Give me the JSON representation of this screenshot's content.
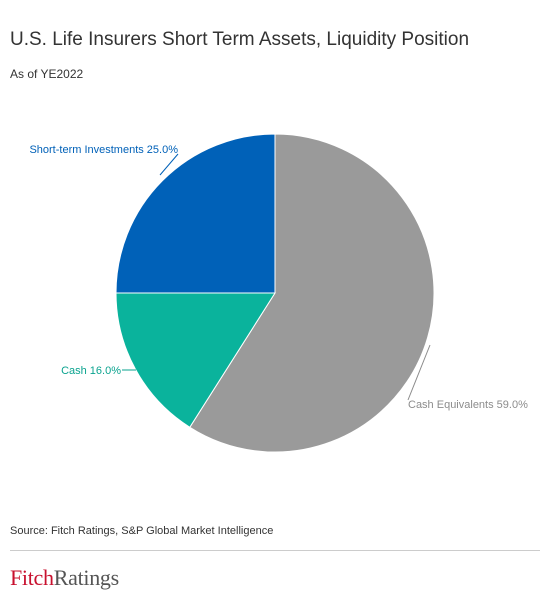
{
  "header": {
    "title": "U.S. Life Insurers Short Term Assets, Liquidity Position",
    "subtitle": "As of YE2022"
  },
  "chart_data": {
    "type": "pie",
    "title": "U.S. Life Insurers Short Term Assets, Liquidity Position",
    "subtitle": "As of YE2022",
    "unit": "%",
    "start_angle_deg": 0,
    "direction": "clockwise",
    "slices": [
      {
        "name": "Cash Equivalents",
        "value": 59.0,
        "label": "Cash Equivalents 59.0%",
        "color": "#9a9a9a",
        "label_color": "#8c8c8c"
      },
      {
        "name": "Cash",
        "value": 16.0,
        "label": "Cash 16.0%",
        "color": "#0ab39c",
        "label_color": "#0aa38f"
      },
      {
        "name": "Short-term Investments",
        "value": 25.0,
        "label": "Short-term Investments 25.0%",
        "color": "#0061b8",
        "label_color": "#0061b8"
      }
    ]
  },
  "footer": {
    "source": "Source: Fitch Ratings,  S&P Global Market Intelligence",
    "logo_text_1": "Fitch",
    "logo_text_2": "Ratings"
  }
}
